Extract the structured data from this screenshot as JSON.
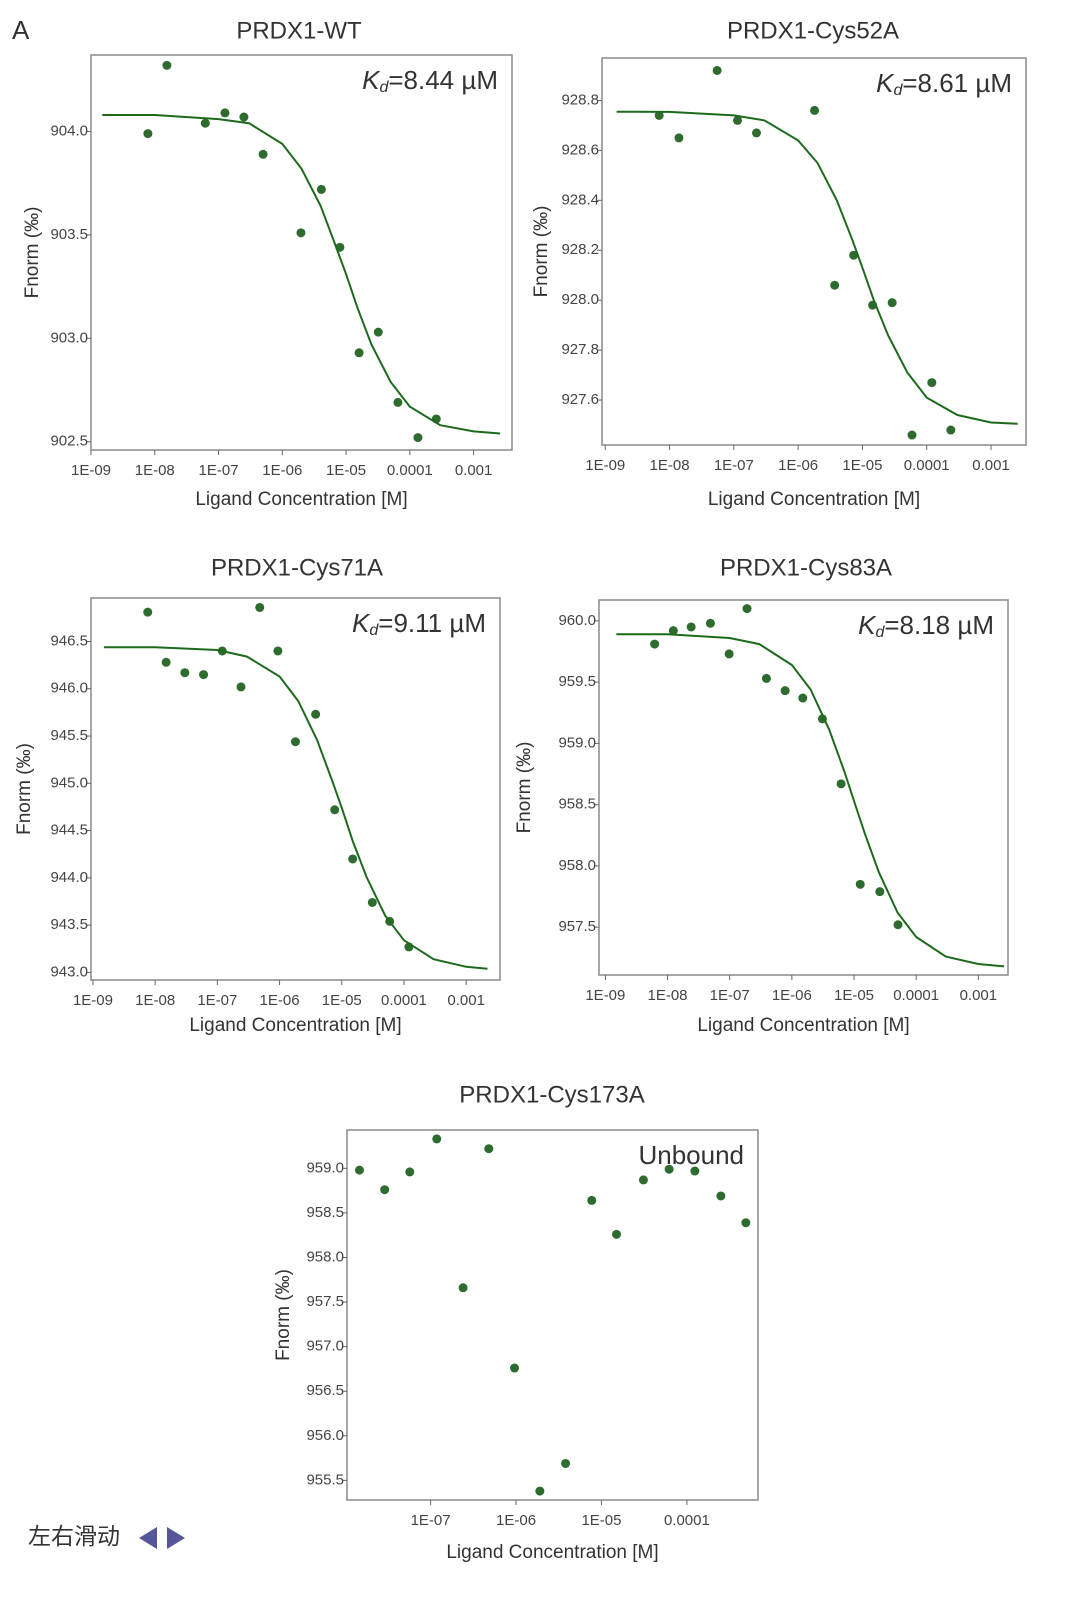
{
  "panel_label": "A",
  "swipe_hint": "左右滑动",
  "chart_data": [
    {
      "type": "scatter",
      "title": "PRDX1-WT",
      "x_label": "Ligand Concentration [M]",
      "y_label": "Fnorm (‰)",
      "xscale": "log",
      "annotation": {
        "italic": "K",
        "subscript": "d",
        "text": "=8.44 µM"
      },
      "xlim": [
        1e-09,
        0.004
      ],
      "xticks": [
        {
          "value": 1e-09,
          "label": "1E-09"
        },
        {
          "value": 1e-08,
          "label": "1E-08"
        },
        {
          "value": 1e-07,
          "label": "1E-07"
        },
        {
          "value": 1e-06,
          "label": "1E-06"
        },
        {
          "value": 1e-05,
          "label": "1E-05"
        },
        0.0001,
        0.001
      ],
      "ylim": [
        902.46,
        904.37
      ],
      "yticks": [
        {
          "value": 902.5,
          "label": "902.5"
        },
        {
          "value": 903,
          "label": "903.0"
        },
        903.5,
        {
          "value": 904,
          "label": "904.0"
        }
      ],
      "series": [
        {
          "style": "markers",
          "color": "#2e6b2e",
          "x": [
            7.8e-09,
            1.55e-08,
            6.2e-08,
            1.26e-07,
            2.5e-07,
            5e-07,
            1.96e-06,
            4.1e-06,
            8e-06,
            1.6e-05,
            3.2e-05,
            6.5e-05,
            0.000134,
            0.00026
          ],
          "values": [
            903.99,
            904.32,
            904.04,
            904.09,
            904.07,
            903.89,
            903.51,
            903.72,
            903.44,
            902.93,
            903.03,
            902.69,
            902.52,
            902.61
          ]
        },
        {
          "style": "line",
          "color": "#1d6a1d",
          "x": [
            1.5e-09,
            1e-08,
            1e-07,
            3e-07,
            1e-06,
            2e-06,
            4e-06,
            7e-06,
            1e-05,
            1.5e-05,
            2.5e-05,
            5e-05,
            0.0001,
            0.0003,
            0.001,
            0.0026
          ],
          "values": [
            904.08,
            904.08,
            904.06,
            904.04,
            903.94,
            903.82,
            903.64,
            903.44,
            903.31,
            903.15,
            902.97,
            902.79,
            902.67,
            902.58,
            902.55,
            902.54
          ]
        }
      ]
    },
    {
      "type": "scatter",
      "title": "PRDX1-Cys52A",
      "x_label": "Ligand Concentration [M]",
      "y_label": "Fnorm (‰)",
      "xscale": "log",
      "annotation": {
        "italic": "K",
        "subscript": "d",
        "text": "=8.61 µM"
      },
      "xlim": [
        8.9e-10,
        0.0035
      ],
      "xticks": [
        {
          "value": 1e-09,
          "label": "1E-09"
        },
        {
          "value": 1e-08,
          "label": "1E-08"
        },
        {
          "value": 1e-07,
          "label": "1E-07"
        },
        {
          "value": 1e-06,
          "label": "1E-06"
        },
        {
          "value": 1e-05,
          "label": "1E-05"
        },
        0.0001,
        0.001
      ],
      "ylim": [
        927.42,
        928.97
      ],
      "yticks": [
        927.6,
        927.8,
        {
          "value": 928,
          "label": "928.0"
        },
        928.2,
        928.4,
        928.6,
        928.8
      ],
      "series": [
        {
          "style": "markers",
          "color": "#2e6b2e",
          "x": [
            6.9e-09,
            1.4e-08,
            5.5e-08,
            1.14e-07,
            2.25e-07,
            1.8e-06,
            3.7e-06,
            7.3e-06,
            1.44e-05,
            2.9e-05,
            5.9e-05,
            0.00012,
            0.000237
          ],
          "values": [
            928.74,
            928.65,
            928.92,
            928.72,
            928.67,
            928.76,
            928.06,
            928.18,
            927.98,
            927.99,
            927.46,
            927.67,
            927.48
          ]
        },
        {
          "style": "line",
          "color": "#1d6a1d",
          "x": [
            1.5e-09,
            1e-08,
            1e-07,
            3e-07,
            1e-06,
            2e-06,
            4e-06,
            7e-06,
            1e-05,
            1.5e-05,
            2.5e-05,
            5e-05,
            0.0001,
            0.0003,
            0.001,
            0.0026
          ],
          "values": [
            928.755,
            928.754,
            928.74,
            928.72,
            928.64,
            928.55,
            928.4,
            928.24,
            928.13,
            928,
            927.86,
            927.71,
            927.61,
            927.54,
            927.51,
            927.505
          ]
        }
      ]
    },
    {
      "type": "scatter",
      "title": "PRDX1-Cys71A",
      "x_label": "Ligand Concentration [M]",
      "y_label": "Fnorm (‰)",
      "xscale": "log",
      "annotation": {
        "italic": "K",
        "subscript": "d",
        "text": "=9.11 µM"
      },
      "xlim": [
        9.3e-10,
        0.0035
      ],
      "xticks": [
        {
          "value": 1e-09,
          "label": "1E-09"
        },
        {
          "value": 1e-08,
          "label": "1E-08"
        },
        {
          "value": 1e-07,
          "label": "1E-07"
        },
        {
          "value": 1e-06,
          "label": "1E-06"
        },
        {
          "value": 1e-05,
          "label": "1E-05"
        },
        0.0001,
        0.001
      ],
      "ylim": [
        942.92,
        946.96
      ],
      "yticks": [
        {
          "value": 943,
          "label": "943.0"
        },
        943.5,
        {
          "value": 944,
          "label": "944.0"
        },
        944.5,
        {
          "value": 945,
          "label": "945.0"
        },
        945.5,
        {
          "value": 946,
          "label": "946.0"
        },
        946.5
      ],
      "series": [
        {
          "style": "markers",
          "color": "#2e6b2e",
          "x": [
            7.6e-09,
            1.5e-08,
            3e-08,
            6e-08,
            1.2e-07,
            2.4e-07,
            4.8e-07,
            9.4e-07,
            1.8e-06,
            3.8e-06,
            7.7e-06,
            1.5e-05,
            3.1e-05,
            5.9e-05,
            0.00012
          ],
          "values": [
            946.81,
            946.28,
            946.17,
            946.15,
            946.4,
            946.02,
            946.86,
            946.4,
            945.44,
            945.73,
            944.72,
            944.2,
            943.74,
            943.54,
            943.27
          ]
        },
        {
          "style": "line",
          "color": "#1d6a1d",
          "x": [
            1.5e-09,
            1e-08,
            1e-07,
            3e-07,
            1e-06,
            2e-06,
            4e-06,
            7e-06,
            1e-05,
            1.5e-05,
            2.5e-05,
            5e-05,
            0.0001,
            0.0003,
            0.001,
            0.0022
          ],
          "values": [
            946.44,
            946.44,
            946.41,
            946.34,
            946.13,
            945.87,
            945.46,
            945.03,
            944.74,
            944.39,
            944.01,
            943.6,
            943.34,
            943.14,
            943.06,
            943.04
          ]
        }
      ]
    },
    {
      "type": "scatter",
      "title": "PRDX1-Cys83A",
      "x_label": "Ligand Concentration [M]",
      "y_label": "Fnorm (‰)",
      "xscale": "log",
      "annotation": {
        "italic": "K",
        "subscript": "d",
        "text": "=8.18 µM"
      },
      "xlim": [
        7.9e-10,
        0.003
      ],
      "xticks": [
        {
          "value": 1e-09,
          "label": "1E-09"
        },
        {
          "value": 1e-08,
          "label": "1E-08"
        },
        {
          "value": 1e-07,
          "label": "1E-07"
        },
        {
          "value": 1e-06,
          "label": "1E-06"
        },
        {
          "value": 1e-05,
          "label": "1E-05"
        },
        0.0001,
        0.001
      ],
      "ylim": [
        957.11,
        960.17
      ],
      "yticks": [
        957.5,
        {
          "value": 958,
          "label": "958.0"
        },
        958.5,
        {
          "value": 959,
          "label": "959.0"
        },
        959.5,
        {
          "value": 960,
          "label": "960.0"
        }
      ],
      "series": [
        {
          "style": "markers",
          "color": "#2e6b2e",
          "x": [
            6.2e-09,
            1.24e-08,
            2.4e-08,
            4.9e-08,
            9.8e-08,
            1.9e-07,
            3.9e-07,
            7.8e-07,
            1.5e-06,
            3.1e-06,
            6.2e-06,
            1.26e-05,
            2.6e-05,
            5.1e-05
          ],
          "values": [
            959.81,
            959.92,
            959.95,
            959.98,
            959.73,
            960.1,
            959.53,
            959.43,
            959.37,
            959.2,
            958.67,
            957.85,
            957.79,
            957.52
          ]
        },
        {
          "style": "line",
          "color": "#1d6a1d",
          "x": [
            1.5e-09,
            1e-08,
            1e-07,
            3e-07,
            1e-06,
            2e-06,
            4e-06,
            7e-06,
            1e-05,
            1.5e-05,
            2.5e-05,
            5e-05,
            0.0001,
            0.0003,
            0.001,
            0.0026
          ],
          "values": [
            959.89,
            959.89,
            959.86,
            959.81,
            959.64,
            959.44,
            959.11,
            958.77,
            958.53,
            958.26,
            957.95,
            957.62,
            957.42,
            957.26,
            957.2,
            957.18
          ]
        }
      ]
    },
    {
      "type": "scatter",
      "title": "PRDX1-Cys173A",
      "x_label": "Ligand Concentration [M]",
      "y_label": "Fnorm (‰)",
      "xscale": "log",
      "annotation": {
        "text": "Unbound"
      },
      "xlim": [
        1.05e-08,
        0.00068
      ],
      "xticks": [
        {
          "value": 1e-07,
          "label": "1E-07"
        },
        {
          "value": 1e-06,
          "label": "1E-06"
        },
        {
          "value": 1e-05,
          "label": "1E-05"
        },
        0.0001
      ],
      "ylim": [
        955.28,
        959.43
      ],
      "yticks": [
        955.5,
        {
          "value": 956,
          "label": "956.0"
        },
        956.5,
        {
          "value": 957,
          "label": "957.0"
        },
        957.5,
        {
          "value": 958,
          "label": "958.0"
        },
        958.5,
        {
          "value": 959,
          "label": "959.0"
        }
      ],
      "series": [
        {
          "style": "markers",
          "color": "#2e6b2e",
          "x": [
            1.47e-08,
            2.9e-08,
            5.7e-08,
            1.18e-07,
            2.4e-07,
            4.8e-07,
            9.6e-07,
            1.9e-06,
            3.8e-06,
            7.7e-06,
            1.5e-05,
            3.1e-05,
            6.2e-05,
            0.000124,
            0.00025,
            0.00049
          ],
          "values": [
            958.98,
            958.76,
            958.96,
            959.33,
            957.66,
            959.22,
            956.76,
            955.38,
            955.69,
            958.64,
            958.26,
            958.87,
            958.99,
            958.97,
            958.69,
            958.39
          ]
        }
      ]
    }
  ]
}
